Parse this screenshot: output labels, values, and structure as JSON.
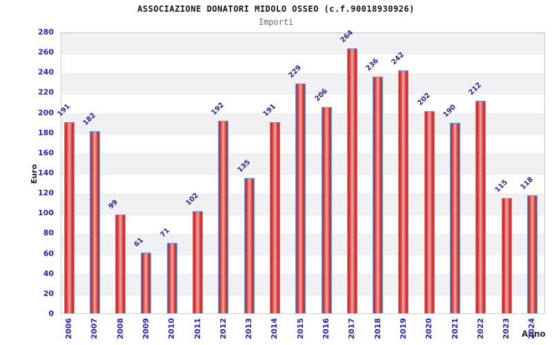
{
  "chart_data": {
    "type": "bar",
    "title": "ASSOCIAZIONE DONATORI MIDOLO OSSEO (c.f.90018930926)",
    "subtitle": "Importi",
    "xlabel": "Anno",
    "ylabel": "Euro",
    "categories": [
      "2006",
      "2007",
      "2008",
      "2009",
      "2010",
      "2011",
      "2012",
      "2013",
      "2014",
      "2015",
      "2016",
      "2017",
      "2018",
      "2019",
      "2020",
      "2021",
      "2022",
      "2023",
      "2024"
    ],
    "values": [
      191,
      182,
      99,
      61,
      71,
      102,
      192,
      135,
      191,
      229,
      206,
      264,
      236,
      242,
      202,
      190,
      212,
      115,
      118
    ],
    "ylim": [
      0,
      280
    ],
    "ytick_step": 20,
    "y_ticks": [
      0,
      20,
      40,
      60,
      80,
      100,
      120,
      140,
      160,
      180,
      200,
      220,
      240,
      260,
      280
    ],
    "grid": "alternating horizontal bands every 20 units, light gray / white",
    "legend": "none",
    "colors": {
      "bar_edge_highlight": "#ef3b3b",
      "bar_dark": "#c62323",
      "bar_center": "#f2a6a6",
      "bar_border": "#55a0e8",
      "axis_tick_text": "#2323cd",
      "value_label_text": "#26269c",
      "band_gray": "#f1f1f3",
      "title_text": "#111111",
      "subtitle_text": "#666666"
    }
  }
}
